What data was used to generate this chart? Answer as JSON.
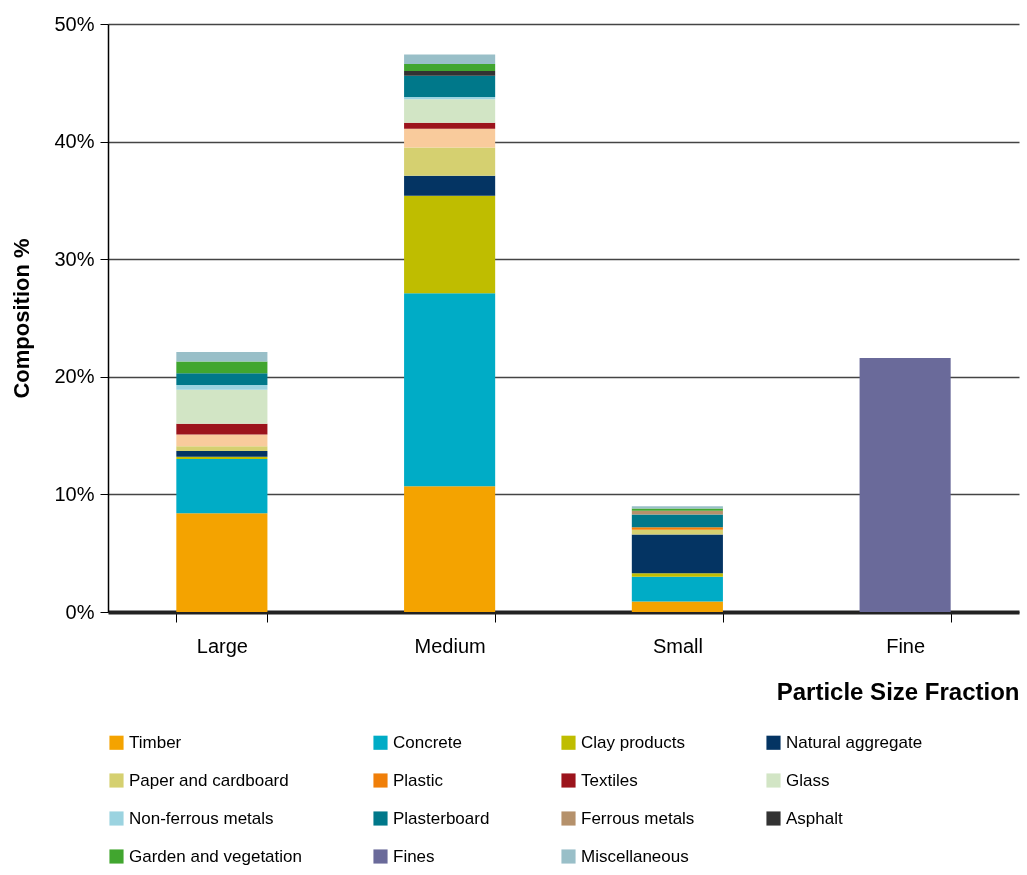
{
  "chart_data": {
    "type": "bar",
    "stacked": true,
    "xlabel": "Particle Size Fraction",
    "ylabel": "Composition %",
    "categories": [
      "Large",
      "Medium",
      "Small",
      "Fine"
    ],
    "ylim": [
      0,
      50
    ],
    "yticks": [
      {
        "value": 0,
        "label": "0%"
      },
      {
        "value": 10,
        "label": "10%"
      },
      {
        "value": 20,
        "label": "20%"
      },
      {
        "value": 30,
        "label": "30%"
      },
      {
        "value": 40,
        "label": "40%"
      },
      {
        "value": 50,
        "label": "50%"
      }
    ],
    "grid": "y",
    "legend": "bottom",
    "series": [
      {
        "name": "Timber",
        "color": "#f4a300",
        "values": [
          8.4,
          10.7,
          0.9,
          null
        ]
      },
      {
        "name": "Concrete",
        "color": "#00acc6",
        "values": [
          4.6,
          16.4,
          2.1,
          null
        ]
      },
      {
        "name": "Clay products",
        "color": "#bfbd00",
        "values": [
          0.2,
          8.3,
          0.3,
          null
        ]
      },
      {
        "name": "Natural aggregate",
        "color": "#043463",
        "values": [
          0.5,
          1.7,
          3.3,
          null
        ]
      },
      {
        "name": "Paper and cardboard",
        "color": "#d5d070",
        "values": [
          0.4,
          2.4,
          0.4,
          null
        ]
      },
      {
        "name": "Plastic",
        "color": "#f07f09",
        "values": [
          null,
          null,
          0.2,
          null
        ]
      },
      {
        "color": "#f9cb9c",
        "values": [
          1.0,
          1.6,
          null,
          null
        ]
      },
      {
        "name": "Textiles",
        "color": "#9c141c",
        "values": [
          0.9,
          0.5,
          null,
          null
        ]
      },
      {
        "name": "Glass",
        "color": "#d2e5c5",
        "values": [
          2.9,
          2.0,
          null,
          null
        ]
      },
      {
        "name": "Non-ferrous metals",
        "color": "#9bd3e0",
        "values": [
          0.4,
          0.2,
          null,
          null
        ]
      },
      {
        "name": "Plasterboard",
        "color": "#00788a",
        "values": [
          1.0,
          1.8,
          1.1,
          null
        ]
      },
      {
        "name": "Ferrous metals",
        "color": "#b5916b",
        "values": [
          null,
          null,
          0.3,
          null
        ]
      },
      {
        "name": "Asphalt",
        "color": "#333333",
        "values": [
          null,
          0.4,
          null,
          null
        ]
      },
      {
        "name": "Garden and vegetation",
        "color": "#41a62f",
        "values": [
          1.0,
          0.6,
          0.2,
          null
        ]
      },
      {
        "name": "Fines",
        "color": "#6a6a9a",
        "values": [
          null,
          null,
          null,
          21.6
        ]
      },
      {
        "name": "Miscellaneous",
        "color": "#99bfc8",
        "values": [
          0.8,
          0.8,
          0.2,
          null
        ]
      }
    ]
  }
}
